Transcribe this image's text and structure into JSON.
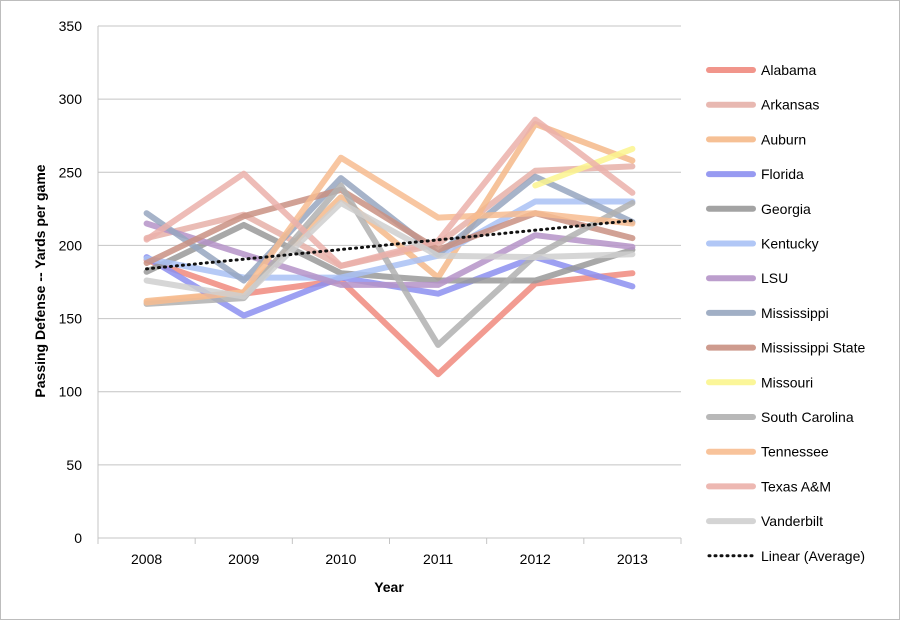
{
  "chart_data": {
    "type": "line",
    "title": "",
    "xlabel": "Year",
    "ylabel": "Passing Defense -- Yards per game",
    "x": [
      "2008",
      "2009",
      "2010",
      "2011",
      "2012",
      "2013"
    ],
    "ylim": [
      0,
      350
    ],
    "yticks": [
      0,
      50,
      100,
      150,
      200,
      250,
      300,
      350
    ],
    "grid": true,
    "legend_position": "right",
    "series": [
      {
        "name": "Alabama",
        "color": "#f08a7e",
        "values": [
          190,
          167,
          176,
          112,
          174,
          181
        ]
      },
      {
        "name": "Arkansas",
        "color": "#e6b0a8",
        "values": [
          205,
          221,
          186,
          201,
          251,
          254
        ]
      },
      {
        "name": "Auburn",
        "color": "#f5b98a",
        "values": [
          162,
          168,
          233,
          178,
          283,
          258
        ]
      },
      {
        "name": "Florida",
        "color": "#8c8ff0",
        "values": [
          192,
          152,
          178,
          167,
          192,
          172
        ]
      },
      {
        "name": "Georgia",
        "color": "#999999",
        "values": [
          182,
          214,
          181,
          176,
          176,
          197
        ]
      },
      {
        "name": "Kentucky",
        "color": "#a9c1f5",
        "values": [
          191,
          178,
          178,
          193,
          230,
          230
        ]
      },
      {
        "name": "LSU",
        "color": "#b593c8",
        "values": [
          215,
          194,
          173,
          173,
          207,
          199
        ]
      },
      {
        "name": "Mississippi",
        "color": "#97a6bf",
        "values": [
          222,
          176,
          246,
          194,
          247,
          216
        ]
      },
      {
        "name": "Mississippi State",
        "color": "#c99082",
        "values": [
          188,
          220,
          238,
          197,
          222,
          205
        ]
      },
      {
        "name": "Missouri",
        "color": "#fbf58e",
        "values": [
          null,
          null,
          null,
          null,
          241,
          266
        ]
      },
      {
        "name": "South Carolina",
        "color": "#b0b0b0",
        "values": [
          160,
          164,
          241,
          132,
          193,
          229
        ]
      },
      {
        "name": "Tennessee",
        "color": "#f7bc90",
        "values": [
          161,
          168,
          260,
          219,
          222,
          215
        ]
      },
      {
        "name": "Texas A&M",
        "color": "#ebb0aa",
        "values": [
          204,
          249,
          186,
          203,
          286,
          236
        ]
      },
      {
        "name": "Vanderbilt",
        "color": "#cfcfcf",
        "values": [
          176,
          165,
          229,
          193,
          192,
          194
        ]
      }
    ],
    "trendline": {
      "name": "Linear (Average)",
      "style": "dotted",
      "color": "#111111",
      "start": 184,
      "end": 217
    }
  }
}
